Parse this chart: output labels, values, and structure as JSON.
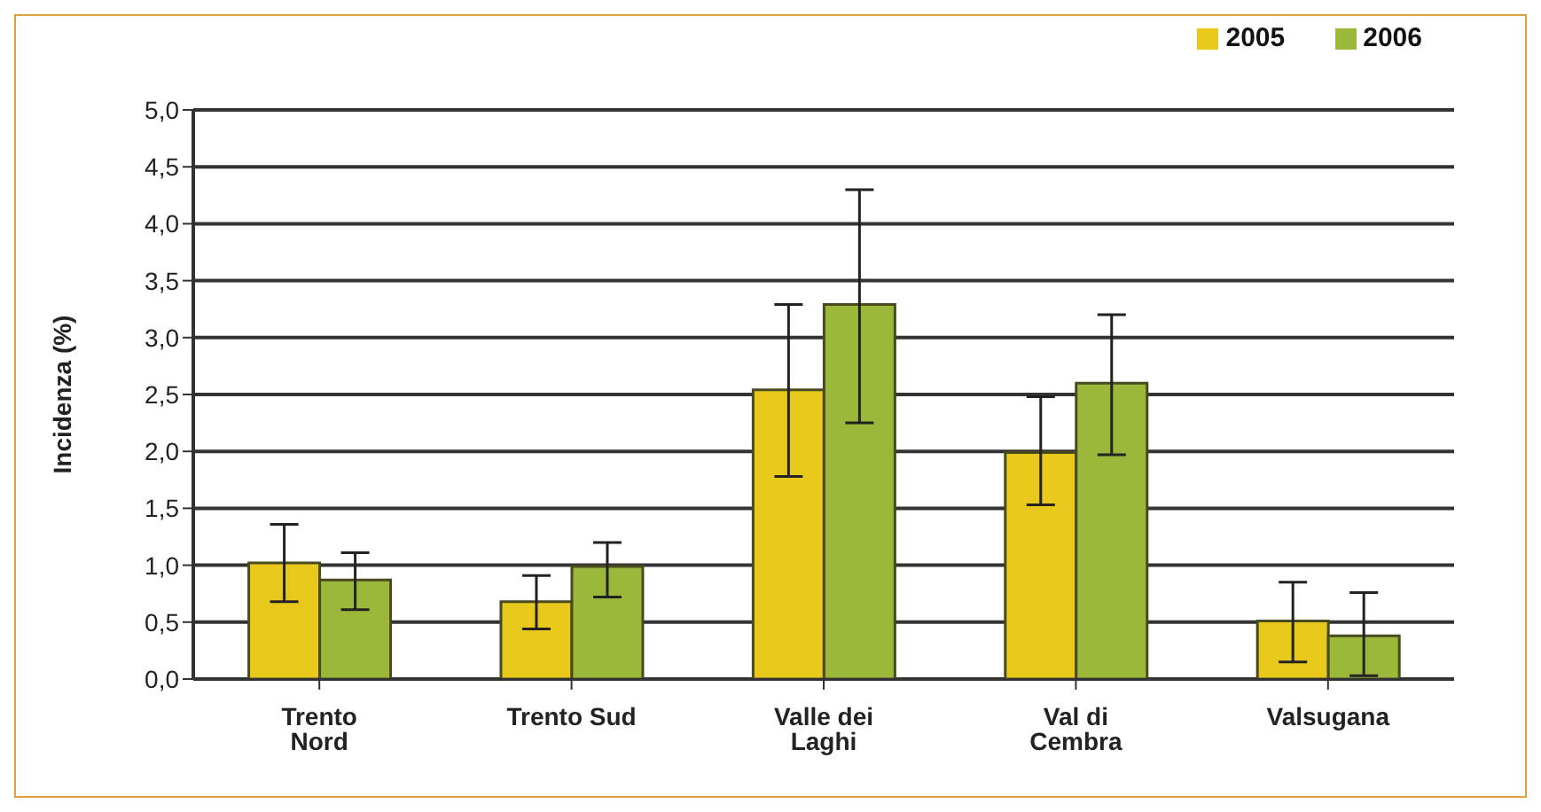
{
  "chart_data": {
    "type": "bar",
    "ylabel": "Incidenza (%)",
    "categories": [
      "Trento Nord",
      "Trento Sud",
      "Valle dei Laghi",
      "Val di Cembra",
      "Valsugana"
    ],
    "series": [
      {
        "name": "2005",
        "color": "#e8c81a",
        "values": [
          1.02,
          0.68,
          2.54,
          1.99,
          0.51
        ],
        "errors": [
          [
            0.68,
            1.36
          ],
          [
            0.44,
            0.91
          ],
          [
            1.78,
            3.29
          ],
          [
            1.53,
            2.48
          ],
          [
            0.15,
            0.85
          ]
        ]
      },
      {
        "name": "2006",
        "color": "#9bb83a",
        "values": [
          0.87,
          0.99,
          3.29,
          2.6,
          0.38
        ],
        "errors": [
          [
            0.61,
            1.11
          ],
          [
            0.72,
            1.2
          ],
          [
            2.25,
            4.3
          ],
          [
            1.97,
            3.2
          ],
          [
            0.03,
            0.76
          ]
        ]
      }
    ],
    "ylim": [
      0,
      5
    ],
    "yticks": [
      {
        "value": 0,
        "label": "0,0"
      },
      {
        "value": 0.5,
        "label": "0,5"
      },
      {
        "value": 1,
        "label": "1,0"
      },
      {
        "value": 1.5,
        "label": "1,5"
      },
      {
        "value": 2,
        "label": "2,0"
      },
      {
        "value": 2.5,
        "label": "2,5"
      },
      {
        "value": 3,
        "label": "3,0"
      },
      {
        "value": 3.5,
        "label": "3,5"
      },
      {
        "value": 4,
        "label": "4,0"
      },
      {
        "value": 4.5,
        "label": "4,5"
      },
      {
        "value": 5,
        "label": "5,0"
      }
    ],
    "grid": "y",
    "legend": "top right"
  }
}
